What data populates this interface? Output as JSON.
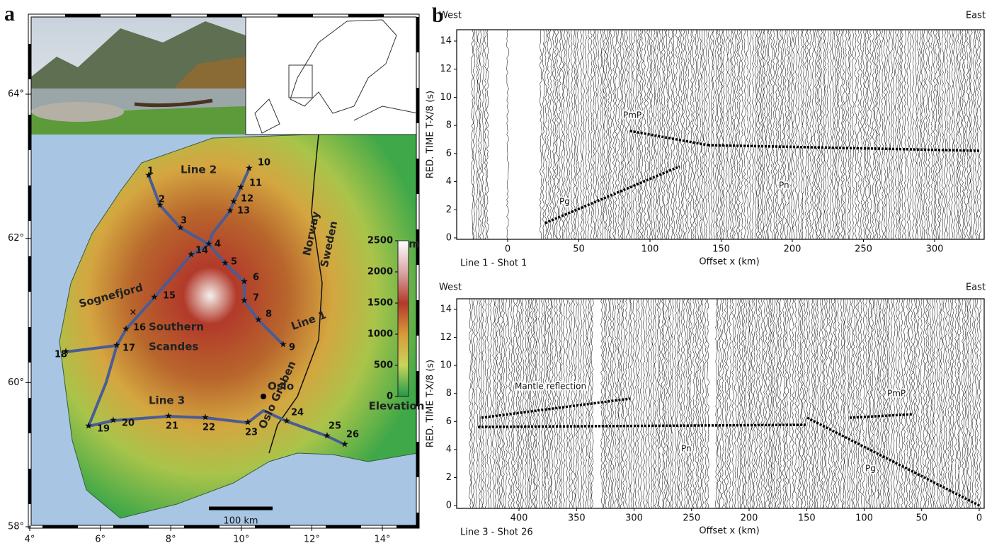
{
  "panel_a": {
    "letter": "a",
    "lat_ticks": [
      {
        "value": 64,
        "label": "64°"
      },
      {
        "value": 62,
        "label": "62°"
      },
      {
        "value": 60,
        "label": "60°"
      },
      {
        "value": 58,
        "label": "58°"
      }
    ],
    "lon_ticks": [
      {
        "value": 4,
        "label": "4°"
      },
      {
        "value": 6,
        "label": "6°"
      },
      {
        "value": 8,
        "label": "8°"
      },
      {
        "value": 10,
        "label": "10°"
      },
      {
        "value": 12,
        "label": "12°"
      },
      {
        "value": 14,
        "label": "14°"
      }
    ],
    "colorbar": {
      "unit": "m",
      "label": "Elevation",
      "ticks": [
        0,
        500,
        1000,
        1500,
        2000,
        2500
      ]
    },
    "labels": {
      "line_1": "Line 1",
      "line_2": "Line 2",
      "line_3": "Line 3",
      "sognefjord": "Sognefjord",
      "southern_scandes": [
        "Southern",
        "Scandes"
      ],
      "oslo_graben": "Oslo Graben",
      "oslo": "Oslo",
      "norway": "Norway",
      "sweden": "Sweden",
      "scale_bar": "100 km"
    },
    "stations": [
      1,
      2,
      3,
      4,
      5,
      6,
      7,
      8,
      9,
      10,
      11,
      12,
      13,
      14,
      15,
      16,
      17,
      18,
      19,
      20,
      21,
      22,
      23,
      24,
      25,
      26
    ]
  },
  "panel_b": {
    "letter": "b",
    "sections": [
      {
        "west": "West",
        "east": "East",
        "shot": "Line 1 - Shot 1",
        "ylabel": "RED. TIME  T-X/8 (s)",
        "xlabel": "Offset x (km)",
        "xticks": [
          0,
          50,
          100,
          150,
          200,
          250,
          300
        ],
        "yticks": [
          0,
          2,
          4,
          6,
          8,
          10,
          12,
          14
        ],
        "phases": [
          "PmP",
          "Pn",
          "Pg"
        ]
      },
      {
        "west": "West",
        "east": "East",
        "shot": "Line 3 - Shot 26",
        "ylabel": "RED. TIME  T-X/8 (s)",
        "xlabel": "Offset x (km)",
        "xticks": [
          400,
          350,
          300,
          250,
          200,
          150,
          100,
          50,
          0
        ],
        "yticks": [
          0,
          2,
          4,
          6,
          8,
          10,
          12,
          14
        ],
        "phases": [
          "Mantle reflection",
          "PmP",
          "Pn",
          "Pg"
        ]
      }
    ]
  }
}
